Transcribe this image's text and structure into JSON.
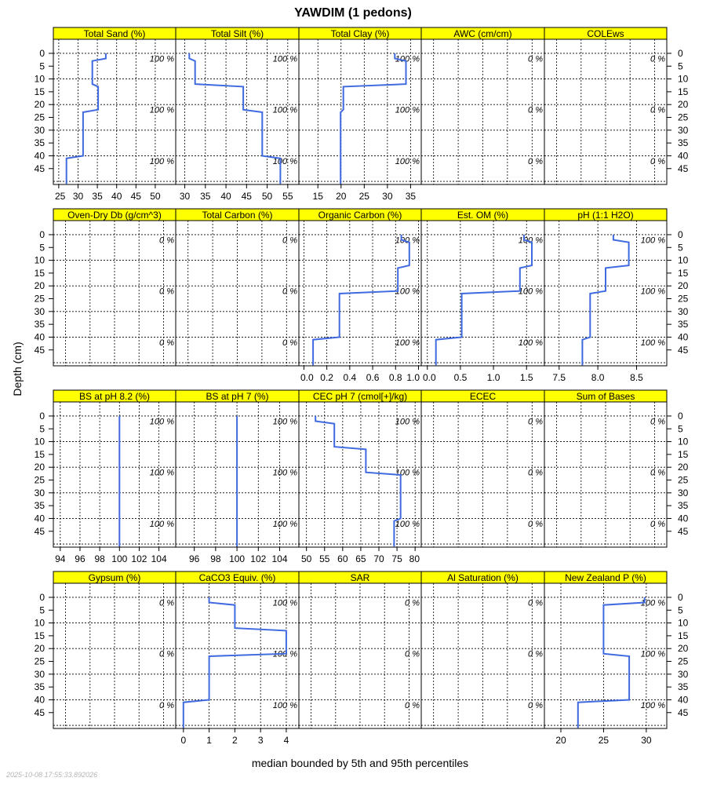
{
  "title": "YAWDIM (1 pedons)",
  "ylabel": "Depth (cm)",
  "xlabel": "median bounded by 5th and 95th percentiles",
  "timestamp": "2025-10-08 17:55:33.892026",
  "colors": {
    "line": "#3f6ae0",
    "strip": "#ffff00"
  },
  "chart_data": {
    "type": "line",
    "ylim": [
      -5.5,
      51.2
    ],
    "y_ticks": [
      0,
      5,
      10,
      15,
      20,
      25,
      30,
      35,
      40,
      45
    ],
    "y_tick_labels": [
      "0",
      "5",
      "10",
      "15",
      "20",
      "25",
      "30",
      "35",
      "40",
      "45"
    ],
    "panels": [
      {
        "name": "Total Sand (%)",
        "xlim": [
          23.6,
          55.3
        ],
        "ticks": [
          25,
          30,
          35,
          40,
          45,
          50
        ],
        "tick_labels": [
          "25",
          "30",
          "35",
          "40",
          "45",
          "50"
        ],
        "show_labels": true,
        "pct": [
          "100 %",
          "100 %",
          "100 %"
        ],
        "profile": [
          [
            0,
            2,
            37.2
          ],
          [
            3,
            12,
            33.7
          ],
          [
            13,
            22,
            35.2
          ],
          [
            23,
            40,
            31.3
          ],
          [
            41,
            51,
            27.0
          ]
        ]
      },
      {
        "name": "Total Silt (%)",
        "xlim": [
          27.8,
          57.7
        ],
        "ticks": [
          30,
          35,
          40,
          45,
          50,
          55
        ],
        "tick_labels": [
          "30",
          "35",
          "40",
          "45",
          "50",
          "55"
        ],
        "show_labels": true,
        "pct": [
          "100 %",
          "100 %",
          "100 %"
        ],
        "profile": [
          [
            0,
            2,
            31.1
          ],
          [
            3,
            12,
            32.5
          ],
          [
            13,
            22,
            44.2
          ],
          [
            23,
            40,
            48.8
          ],
          [
            41,
            51,
            53.2
          ]
        ]
      },
      {
        "name": "Total Clay (%)",
        "xlim": [
          10.9,
          37.3
        ],
        "ticks": [
          15,
          20,
          25,
          30,
          35
        ],
        "tick_labels": [
          "15",
          "20",
          "25",
          "30",
          "35"
        ],
        "show_labels": true,
        "pct": [
          "100 %",
          "100 %",
          "100 %"
        ],
        "profile": [
          [
            0,
            2,
            31.6
          ],
          [
            3,
            12,
            34.0
          ],
          [
            13,
            22,
            20.5
          ],
          [
            23,
            51,
            19.9
          ]
        ]
      },
      {
        "name": "AWC (cm/cm)",
        "xlim": [
          0,
          1
        ],
        "ticks": [
          0.1,
          0.3,
          0.5,
          0.7,
          0.9
        ],
        "tick_labels": [],
        "show_labels": false,
        "pct": [
          "0 %",
          "0 %",
          "0 %"
        ],
        "profile": []
      },
      {
        "name": "COLEws",
        "xlim": [
          0,
          1
        ],
        "ticks": [
          0.1,
          0.3,
          0.5,
          0.7,
          0.9
        ],
        "tick_labels": [],
        "show_labels": false,
        "pct": [
          "0 %",
          "0 %",
          "0 %"
        ],
        "profile": []
      },
      {
        "name": "Oven-Dry Db (g/cm^3)",
        "xlim": [
          0,
          1
        ],
        "ticks": [
          0.1,
          0.3,
          0.5,
          0.7,
          0.9
        ],
        "tick_labels": [],
        "show_labels": false,
        "pct": [
          "0 %",
          "0 %",
          "0 %"
        ],
        "profile": []
      },
      {
        "name": "Total Carbon (%)",
        "xlim": [
          0,
          1
        ],
        "ticks": [
          0.1,
          0.3,
          0.5,
          0.7,
          0.9
        ],
        "tick_labels": [],
        "show_labels": false,
        "pct": [
          "0 %",
          "0 %",
          "0 %"
        ],
        "profile": []
      },
      {
        "name": "Organic Carbon (%)",
        "xlim": [
          -0.044,
          1.024
        ],
        "ticks": [
          0,
          0.2,
          0.4,
          0.6,
          0.8,
          1.0
        ],
        "tick_labels": [
          "0.0",
          "0.2",
          "0.4",
          "0.6",
          "0.8",
          "1.0"
        ],
        "show_labels": true,
        "pct": [
          "100 %",
          "100 %",
          "100 %"
        ],
        "profile": [
          [
            0,
            2,
            0.85
          ],
          [
            3,
            12,
            0.92
          ],
          [
            13,
            22,
            0.82
          ],
          [
            23,
            40,
            0.31
          ],
          [
            41,
            51,
            0.08
          ]
        ]
      },
      {
        "name": "Est. OM (%)",
        "xlim": [
          -0.092,
          1.77
        ],
        "ticks": [
          0,
          0.5,
          1.0,
          1.5
        ],
        "tick_labels": [
          "0.0",
          "0.5",
          "1.0",
          "1.5"
        ],
        "show_labels": true,
        "pct": [
          "100 %",
          "100 %",
          "100 %"
        ],
        "profile": [
          [
            0,
            2,
            1.46
          ],
          [
            3,
            12,
            1.58
          ],
          [
            13,
            22,
            1.4
          ],
          [
            23,
            40,
            0.52
          ],
          [
            41,
            51,
            0.13
          ]
        ]
      },
      {
        "name": "pH (1:1 H2O)",
        "xlim": [
          7.31,
          8.89
        ],
        "ticks": [
          7.5,
          8.0,
          8.5
        ],
        "tick_labels": [
          "7.5",
          "8.0",
          "8.5"
        ],
        "show_labels": true,
        "pct": [
          "100 %",
          "100 %",
          "100 %"
        ],
        "profile": [
          [
            0,
            2,
            8.2
          ],
          [
            3,
            12,
            8.4
          ],
          [
            13,
            22,
            8.1
          ],
          [
            23,
            40,
            7.9
          ],
          [
            41,
            51,
            7.8
          ]
        ]
      },
      {
        "name": "BS at pH 8.2 (%)",
        "xlim": [
          93.3,
          105.7
        ],
        "ticks": [
          94,
          96,
          98,
          100,
          102,
          104
        ],
        "tick_labels": [
          "94",
          "96",
          "98",
          "100",
          "102",
          "104"
        ],
        "show_labels": true,
        "pct": [
          "100 %",
          "100 %",
          "100 %"
        ],
        "profile": [
          [
            0,
            51,
            100
          ]
        ]
      },
      {
        "name": "BS at pH 7 (%)",
        "xlim": [
          94.26,
          105.8
        ],
        "ticks": [
          96,
          98,
          100,
          102,
          104
        ],
        "tick_labels": [
          "96",
          "98",
          "100",
          "102",
          "104"
        ],
        "show_labels": true,
        "pct": [
          "100 %",
          "100 %",
          "100 %"
        ],
        "profile": [
          [
            0,
            51,
            100
          ]
        ]
      },
      {
        "name": "CEC pH 7 (cmol[+]/kg)",
        "xlim": [
          47.9,
          81.7
        ],
        "ticks": [
          50,
          55,
          60,
          65,
          70,
          75,
          80
        ],
        "tick_labels": [
          "50",
          "55",
          "60",
          "65",
          "70",
          "75",
          "80"
        ],
        "show_labels": true,
        "pct": [
          "100 %",
          "100 %",
          "100 %"
        ],
        "profile": [
          [
            0,
            2,
            52.5
          ],
          [
            3,
            12,
            57.7
          ],
          [
            13,
            22,
            66.4
          ],
          [
            23,
            40,
            76.0
          ],
          [
            41,
            51,
            74.2
          ]
        ]
      },
      {
        "name": "ECEC",
        "xlim": [
          0,
          1
        ],
        "ticks": [
          0.1,
          0.3,
          0.5,
          0.7,
          0.9
        ],
        "tick_labels": [],
        "show_labels": false,
        "pct": [
          "0 %",
          "0 %",
          "0 %"
        ],
        "profile": []
      },
      {
        "name": "Sum of Bases",
        "xlim": [
          0,
          1
        ],
        "ticks": [
          0.1,
          0.3,
          0.5,
          0.7,
          0.9
        ],
        "tick_labels": [],
        "show_labels": false,
        "pct": [
          "0 %",
          "0 %",
          "0 %"
        ],
        "profile": []
      },
      {
        "name": "Gypsum (%)",
        "xlim": [
          0,
          1
        ],
        "ticks": [
          0.1,
          0.3,
          0.5,
          0.7,
          0.9
        ],
        "tick_labels": [],
        "show_labels": false,
        "pct": [
          "0 %",
          "0 %",
          "0 %"
        ],
        "profile": []
      },
      {
        "name": "CaCO3 Equiv. (%)",
        "xlim": [
          -0.3,
          4.49
        ],
        "ticks": [
          0,
          1,
          2,
          3,
          4
        ],
        "tick_labels": [
          "0",
          "1",
          "2",
          "3",
          "4"
        ],
        "show_labels": true,
        "pct": [
          "100 %",
          "100 %",
          "100 %"
        ],
        "profile": [
          [
            0,
            2,
            1
          ],
          [
            3,
            12,
            2
          ],
          [
            13,
            22,
            4
          ],
          [
            23,
            40,
            1
          ],
          [
            41,
            51,
            0
          ]
        ]
      },
      {
        "name": "SAR",
        "xlim": [
          0,
          1
        ],
        "ticks": [
          0.1,
          0.3,
          0.5,
          0.7,
          0.9
        ],
        "tick_labels": [],
        "show_labels": false,
        "pct": [
          "0 %",
          "0 %",
          "0 %"
        ],
        "profile": []
      },
      {
        "name": "Al Saturation (%)",
        "xlim": [
          0,
          1
        ],
        "ticks": [
          0.1,
          0.3,
          0.5,
          0.7,
          0.9
        ],
        "tick_labels": [],
        "show_labels": false,
        "pct": [
          "0 %",
          "0 %",
          "0 %"
        ],
        "profile": []
      },
      {
        "name": "New Zealand P (%)",
        "xlim": [
          18.07,
          32.4
        ],
        "ticks": [
          20,
          25,
          30
        ],
        "tick_labels": [
          "20",
          "25",
          "30"
        ],
        "show_labels": true,
        "pct": [
          "100 %",
          "100 %",
          "100 %"
        ],
        "profile": [
          [
            0,
            2,
            29.8
          ],
          [
            3,
            22,
            25
          ],
          [
            23,
            40,
            28
          ],
          [
            41,
            51,
            22
          ]
        ]
      }
    ]
  }
}
